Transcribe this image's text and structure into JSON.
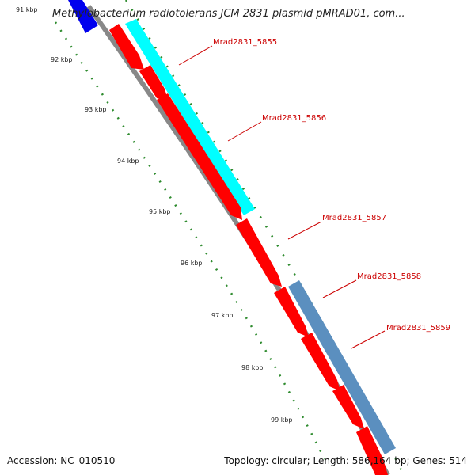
{
  "title": "Methylobacterium radiotolerans JCM 2831 plasmid pMRAD01, com...",
  "footer": {
    "accession": "Accession: NC_010510",
    "summary": "Topology: circular; Length: 586,164 bp; Genes: 514"
  },
  "scale_ticks": [
    "91 kbp",
    "92 kbp",
    "93 kbp",
    "94 kbp",
    "95 kbp",
    "96 kbp",
    "97 kbp",
    "98 kbp",
    "99 kbp"
  ],
  "genes": [
    {
      "label": "Mrad2831_5855"
    },
    {
      "label": "Mrad2831_5856"
    },
    {
      "label": "Mrad2831_5857"
    },
    {
      "label": "Mrad2831_5858"
    },
    {
      "label": "Mrad2831_5859"
    }
  ],
  "colors": {
    "gene_forward": "#ff0000",
    "label_text": "#cc0000",
    "cyan_feature": "#00ffff",
    "steel_feature": "#5b8fbf",
    "blue_feature": "#0000ee",
    "backbone": "#888888",
    "tick": "#2e8b2e"
  }
}
